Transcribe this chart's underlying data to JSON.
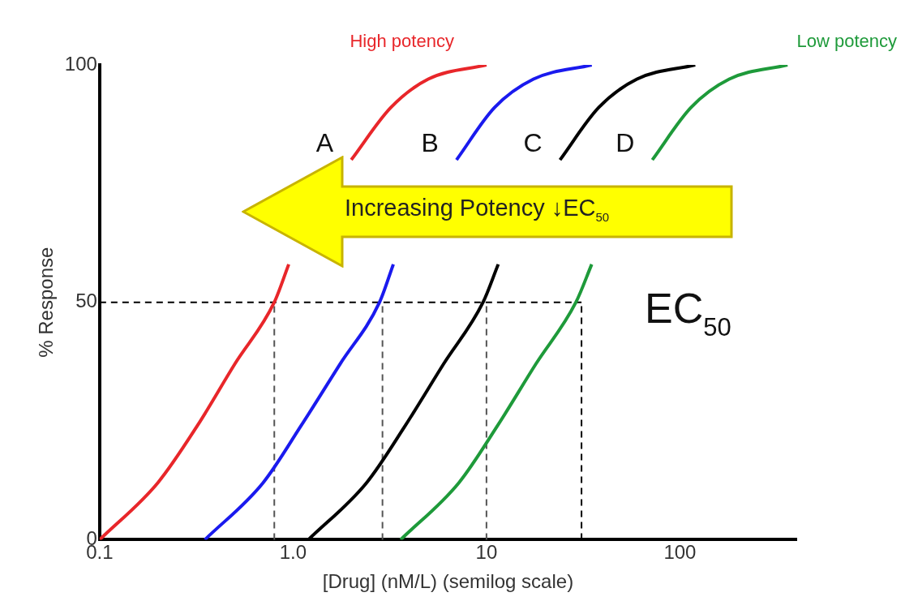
{
  "chart_data": {
    "type": "line",
    "xlabel": "[Drug] (nM/L) (semilog scale)",
    "ylabel": "% Response",
    "log": "x",
    "grid": false,
    "legend": false,
    "marker": "none",
    "line_style": "solid",
    "xlim": [
      0.1,
      400
    ],
    "xticks": [
      {
        "value": 0.1,
        "label": "0.1"
      },
      {
        "value": 1,
        "label": "1.0"
      },
      10,
      100
    ],
    "ylim": [
      0,
      100
    ],
    "yticks": [
      0,
      50,
      100
    ],
    "series": [
      {
        "name": "A",
        "color": "#e8262a",
        "x": [
          0.1,
          0.2,
          0.32,
          0.5,
          0.8,
          0.95,
          1.26,
          2,
          3.2,
          5,
          10
        ],
        "values": [
          0,
          12,
          24,
          37,
          50,
          58,
          null,
          80,
          91,
          97,
          100
        ]
      },
      {
        "name": "B",
        "color": "#1a1aee",
        "x": [
          0.35,
          0.7,
          1.1,
          1.75,
          2.8,
          3.3,
          4.4,
          7,
          11,
          17.5,
          35
        ],
        "values": [
          0,
          12,
          24,
          37,
          50,
          58,
          null,
          80,
          91,
          97,
          100
        ]
      },
      {
        "name": "C",
        "color": "#000000",
        "x": [
          1.2,
          2.4,
          3.8,
          6,
          9.6,
          11.5,
          15,
          24,
          38,
          60,
          120
        ],
        "values": [
          0,
          12,
          24,
          37,
          50,
          58,
          null,
          80,
          91,
          97,
          100
        ]
      },
      {
        "name": "D",
        "color": "#1e9a3a",
        "x": [
          3.6,
          7.2,
          11.4,
          18,
          29,
          35,
          45,
          72,
          114,
          180,
          360
        ],
        "values": [
          0,
          12,
          24,
          37,
          50,
          58,
          null,
          80,
          91,
          97,
          100
        ]
      }
    ],
    "ref_lines": [
      {
        "axis": "y",
        "value": 50,
        "line_style": "dashed",
        "color": "#000000"
      },
      {
        "axis": "x",
        "value": 0.8,
        "line_style": "dashed",
        "color": "#555555"
      },
      {
        "axis": "x",
        "value": 2.9,
        "line_style": "dashed",
        "color": "#555555"
      },
      {
        "axis": "x",
        "value": 10,
        "line_style": "dashed",
        "color": "#555555"
      },
      {
        "axis": "x",
        "value": 31,
        "line_style": "dashed",
        "color": "#000000"
      }
    ],
    "annotations": [
      "Increasing Potency ↓EC$_{50}$",
      "EC$_{50}$",
      {
        "text": "High potency",
        "x": 10,
        "y": 100
      },
      {
        "text": "Low potency",
        "x": 360,
        "y": 100
      }
    ]
  }
}
